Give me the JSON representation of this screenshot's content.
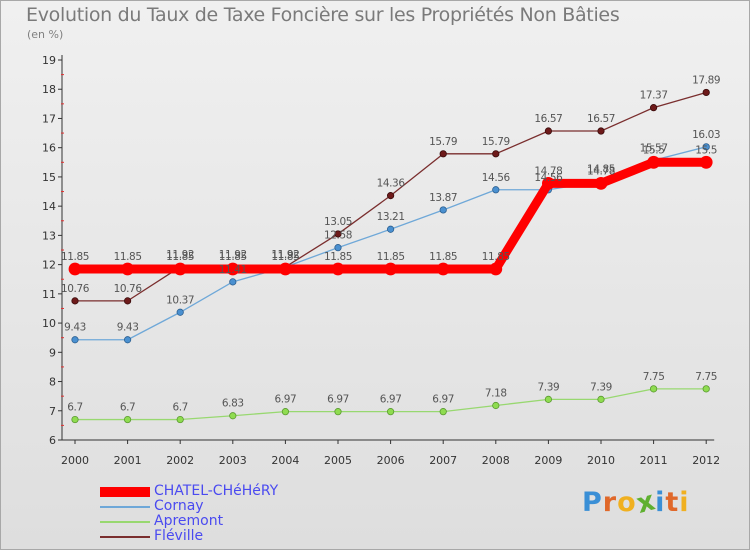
{
  "title": "Evolution du Taux de Taxe Foncière sur les Propriétés Non Bâties",
  "subtitle": "(en %)",
  "logo": {
    "letters": [
      "P",
      "r",
      "o",
      "x",
      "i",
      "t",
      "i"
    ],
    "colors": [
      "#3a8fd6",
      "#e0682a",
      "#f0b020",
      "#5fb030",
      "#3a8fd6",
      "#e0682a",
      "#f0b020"
    ]
  },
  "chart_data": {
    "type": "line",
    "title": "Evolution du Taux de Taxe Foncière sur les Propriétés Non Bâties",
    "ylabel": "(en %)",
    "x": [
      "2000",
      "2001",
      "2002",
      "2003",
      "2004",
      "2005",
      "2006",
      "2007",
      "2008",
      "2009",
      "2010",
      "2011",
      "2012"
    ],
    "ylim": [
      6,
      19
    ],
    "yticks": [
      "6",
      "7",
      "8",
      "9",
      "10",
      "11",
      "12",
      "13",
      "14",
      "15",
      "16",
      "17",
      "18",
      "19"
    ],
    "grid": false,
    "legend_position": "bottom-left",
    "series": [
      {
        "name": "CHATEL-CHéHéRY",
        "color": "#ff0000",
        "values": [
          11.85,
          11.85,
          11.85,
          11.85,
          11.85,
          11.85,
          11.85,
          11.85,
          11.85,
          14.78,
          14.78,
          15.5,
          15.5
        ],
        "labels": [
          "11.85",
          "11.85",
          "11.85",
          "11.85",
          "11.85",
          "11.85",
          "11.85",
          "11.85",
          "11.85",
          "14.78",
          "14.78",
          "15.5",
          "15.5"
        ]
      },
      {
        "name": "Cornay",
        "color": "#6fa8d8",
        "values": [
          9.43,
          9.43,
          10.37,
          11.41,
          11.92,
          12.58,
          13.21,
          13.87,
          14.56,
          14.56,
          14.85,
          15.57,
          16.03
        ],
        "labels": [
          "9.43",
          "9.43",
          "10.37",
          "11.41",
          "11.92",
          "12.58",
          "13.21",
          "13.87",
          "14.56",
          "14.56",
          "14.85",
          "15.57",
          "16.03"
        ]
      },
      {
        "name": "Apremont",
        "color": "#98d870",
        "values": [
          6.7,
          6.7,
          6.7,
          6.83,
          6.97,
          6.97,
          6.97,
          6.97,
          7.18,
          7.39,
          7.39,
          7.75,
          7.75
        ],
        "labels": [
          "6.7",
          "6.7",
          "6.7",
          "6.83",
          "6.97",
          "6.97",
          "6.97",
          "6.97",
          "7.18",
          "7.39",
          "7.39",
          "7.75",
          "7.75"
        ]
      },
      {
        "name": "Fléville",
        "color": "#7a2e2e",
        "values": [
          10.76,
          10.76,
          11.92,
          11.92,
          11.92,
          13.05,
          14.36,
          15.79,
          15.79,
          16.57,
          16.57,
          17.37,
          17.89
        ],
        "labels": [
          "10.76",
          "10.76",
          "11.92",
          "11.92",
          "11.92",
          "13.05",
          "14.36",
          "15.79",
          "15.79",
          "16.57",
          "16.57",
          "17.37",
          "17.89"
        ]
      }
    ]
  }
}
